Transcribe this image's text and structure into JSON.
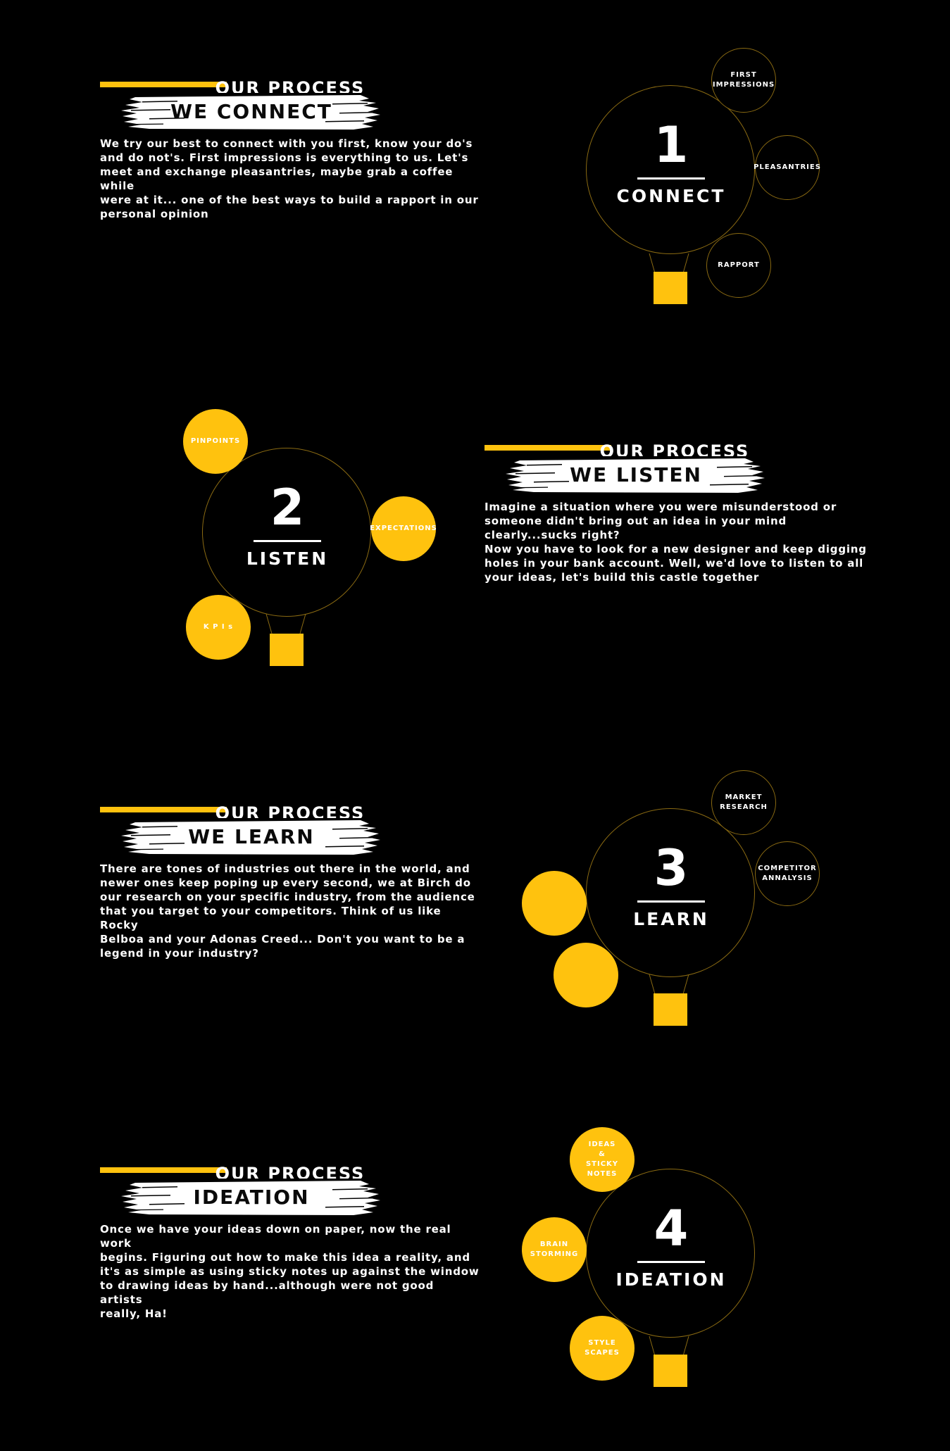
{
  "colors": {
    "accent": "#ffc20e",
    "background": "#000000",
    "circle_outline": "#8a6a12",
    "text": "#ffffff"
  },
  "sections": [
    {
      "eyebrow": "OUR PROCESS",
      "heading": "WE CONNECT",
      "body": "We try our best to connect with you first, know your do's\nand do not's. First impressions is everything to us. Let's\nmeet and exchange pleasantries, maybe grab a coffee while\nwere at it... one of the best ways to build a rapport in our\npersonal opinion",
      "number": "1",
      "label": "CONNECT",
      "bubbles": [
        {
          "text": "FIRST\nIMPRESSIONS"
        },
        {
          "text": "PLEASANTRIES"
        },
        {
          "text": "RAPPORT"
        }
      ]
    },
    {
      "eyebrow": "OUR PROCESS",
      "heading": "WE LISTEN",
      "body": "Imagine a situation where you were misunderstood or\nsomeone didn't bring out an idea in your mind\nclearly...sucks right?\nNow you have to look for a new designer and keep digging\nholes in your bank account. Well, we'd love to listen to all\nyour ideas, let's build this castle together",
      "number": "2",
      "label": "LISTEN",
      "bubbles": [
        {
          "text": "PINPOINTS"
        },
        {
          "text": "EXPECTATIONS"
        },
        {
          "text": "K P I s"
        }
      ]
    },
    {
      "eyebrow": "OUR PROCESS",
      "heading": "WE LEARN",
      "body": "There are tones of industries out there in the world, and\nnewer ones keep poping up every second, we at Birch do\nour research on your specific industry, from the audience\nthat you target to your competitors. Think of us like Rocky\nBelboa and your Adonas Creed... Don't you want to be a\nlegend in your industry?",
      "number": "3",
      "label": "LEARN",
      "bubbles": [
        {
          "text": "MARKET\nRESEARCH"
        },
        {
          "text": "COMPETITOR\nANNALYSIS"
        },
        {
          "text": ""
        },
        {
          "text": ""
        }
      ]
    },
    {
      "eyebrow": "OUR PROCESS",
      "heading": "IDEATION",
      "body": "Once we have your ideas down on paper, now the real work\nbegins. Figuring out how to make this idea a reality, and\nit's as simple as using sticky notes up against the window\nto drawing ideas by hand...although were not good artists\nreally, Ha!",
      "number": "4",
      "label": "IDEATION",
      "bubbles": [
        {
          "text": "IDEAS\n&\nSTICKY\nNOTES"
        },
        {
          "text": "BRAIN\nSTORMING"
        },
        {
          "text": "STYLE\nSCAPES"
        }
      ]
    }
  ]
}
